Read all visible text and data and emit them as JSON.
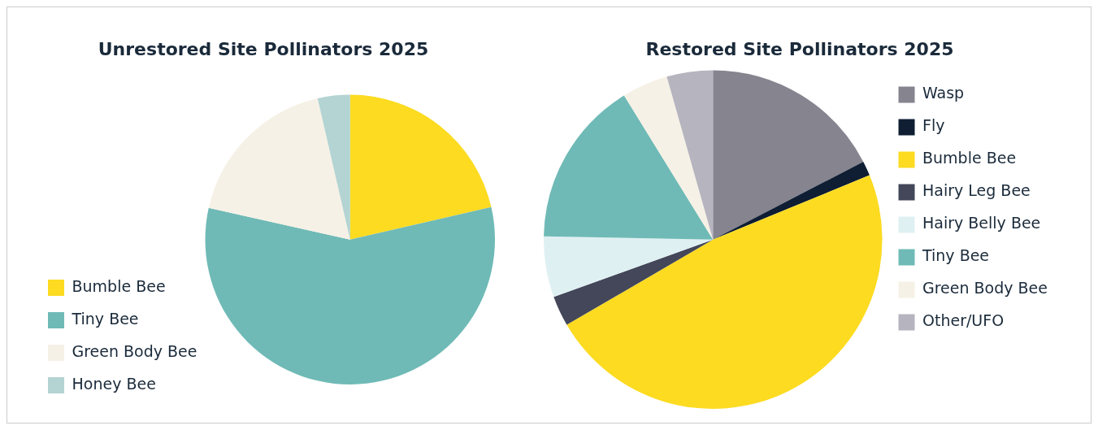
{
  "chart_data": [
    {
      "type": "pie",
      "title": "Unrestored Site Pollinators 2025",
      "categories": [
        "Bumble Bee",
        "Tiny Bee",
        "Green Body Bee",
        "Honey Bee"
      ],
      "values": [
        21.4,
        57.1,
        17.9,
        3.6
      ],
      "colors": [
        "#fcdb21",
        "#6fbab6",
        "#f6f1e6",
        "#b3d4d2"
      ],
      "legend": "bottom left"
    },
    {
      "type": "pie",
      "title": "Restored Site Pollinators 2025",
      "categories": [
        "Wasp",
        "Fly",
        "Bumble Bee",
        "Hairy Leg Bee",
        "Hairy Belly Bee",
        "Tiny Bee",
        "Green Body Bee",
        "Other/UFO"
      ],
      "values": [
        17.4,
        1.4,
        47.8,
        2.9,
        5.8,
        15.9,
        4.4,
        4.4
      ],
      "colors": [
        "#85848f",
        "#0f1e33",
        "#fcdb21",
        "#434759",
        "#dff0f2",
        "#6fbab6",
        "#f6f1e6",
        "#b6b4be"
      ],
      "legend": "right"
    }
  ]
}
